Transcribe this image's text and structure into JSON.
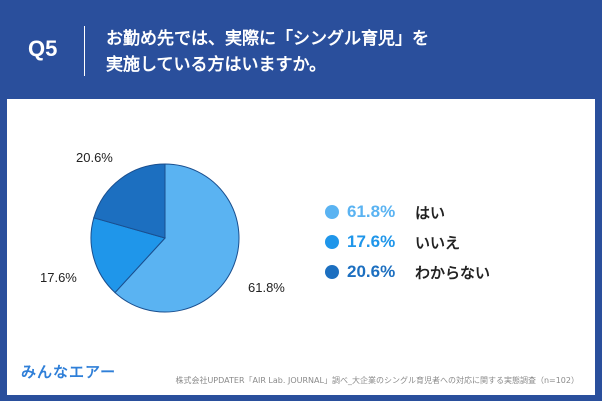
{
  "header": {
    "q_number": "Q5",
    "question_line1": "お勤め先では、実際に「シングル育児」を",
    "question_line2": "実施している方はいますか。"
  },
  "legend": [
    {
      "pct": "61.8%",
      "label": "はい",
      "color": "#5ab3f2"
    },
    {
      "pct": "17.6%",
      "label": "いいえ",
      "color": "#1f96ea"
    },
    {
      "pct": "20.6%",
      "label": "わからない",
      "color": "#1c6fc0"
    }
  ],
  "slice_labels": [
    "61.8%",
    "17.6%",
    "20.6%"
  ],
  "brand": "みんなエアー",
  "source": "株式会社UPDATER「AIR Lab. JOURNAL」調べ_大企業のシングル育児者への対応に関する実態調査（n=102）",
  "chart_data": {
    "type": "pie",
    "categories": [
      "はい",
      "いいえ",
      "わからない"
    ],
    "values": [
      61.8,
      17.6,
      20.6
    ],
    "colors": [
      "#5ab3f2",
      "#1f96ea",
      "#1c6fc0"
    ],
    "start": "12 o'clock",
    "direction": "clockwise",
    "legend_position": "right"
  }
}
